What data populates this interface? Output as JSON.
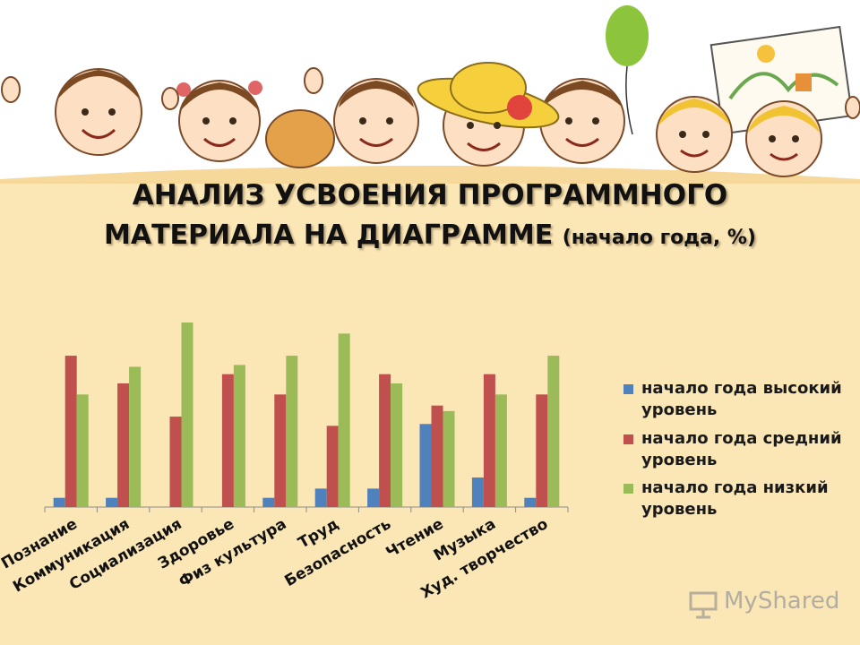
{
  "title": {
    "line1": "АНАЛИЗ УСВОЕНИЯ ПРОГРАММНОГО",
    "line2": "МАТЕРИАЛА НА ДИАГРАММЕ",
    "subtitle": "(начало года, %)"
  },
  "watermark": "MyShared",
  "colors": {
    "background": "#fbe6b6",
    "high": "#4f81bd",
    "medium": "#c0504d",
    "low": "#9bbb59"
  },
  "chart_data": {
    "type": "bar",
    "categories": [
      "Познание",
      "Коммуникация",
      "Социализация",
      "Здоровье",
      "Физ культура",
      "Труд",
      "Безопасность",
      "Чтение",
      "Музыка",
      "Худ. творчество"
    ],
    "series": [
      {
        "name": "начало года высокий уровень",
        "color": "#4f81bd",
        "values": [
          5,
          5,
          0,
          0,
          5,
          10,
          10,
          45,
          16,
          5
        ]
      },
      {
        "name": "начало года средний уровень",
        "color": "#c0504d",
        "values": [
          82,
          67,
          49,
          72,
          61,
          44,
          72,
          55,
          72,
          61
        ]
      },
      {
        "name": "начало года низкий уровень",
        "color": "#9bbb59",
        "values": [
          61,
          76,
          100,
          77,
          82,
          94,
          67,
          52,
          61,
          82
        ]
      }
    ],
    "ylim": [
      0,
      100
    ],
    "legend": "right",
    "grid": false
  }
}
